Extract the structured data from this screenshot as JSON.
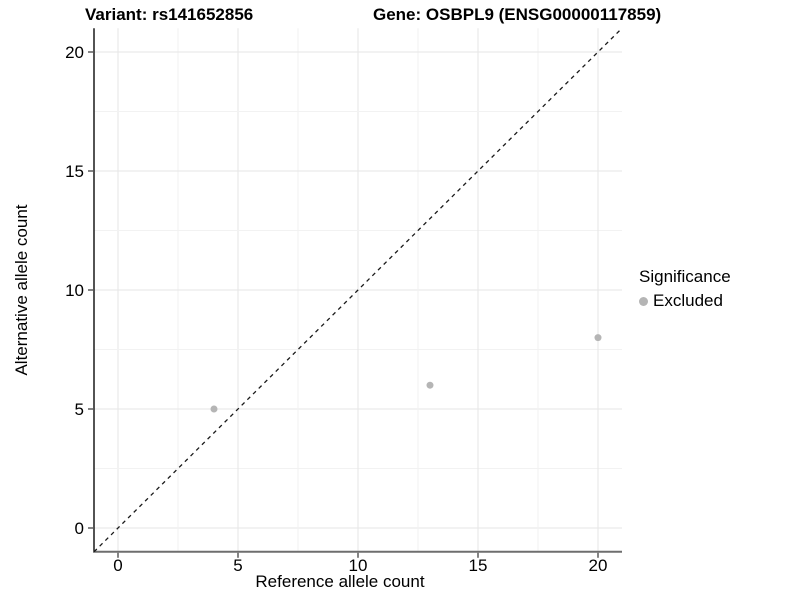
{
  "chart_data": {
    "type": "scatter",
    "title_left": "Variant: rs141652856",
    "title_right": "Gene: OSBPL9 (ENSG00000117859)",
    "xlabel": "Reference allele count",
    "ylabel": "Alternative allele count",
    "xlim": [
      -1,
      21
    ],
    "ylim": [
      -1,
      21
    ],
    "x_ticks": [
      0,
      5,
      10,
      15,
      20
    ],
    "y_ticks": [
      0,
      5,
      10,
      15,
      20
    ],
    "minor_grid_step": 2.5,
    "grid": true,
    "points": [
      {
        "x": 4,
        "y": 5
      },
      {
        "x": 13,
        "y": 6
      },
      {
        "x": 20,
        "y": 8
      }
    ],
    "point_color": "#b5b5b5",
    "identity_line": {
      "style": "dashed",
      "from": [
        -1,
        -1
      ],
      "to": [
        21,
        21
      ],
      "color": "#1a1a1a"
    },
    "legend": {
      "title": "Significance",
      "position": "right",
      "entries": [
        {
          "label": "Excluded",
          "color": "#b5b5b5"
        }
      ]
    },
    "colors": {
      "background": "#ffffff",
      "grid_major": "#e5e5e5",
      "grid_minor": "#f2f2f2",
      "axis_left": "#1a1a1a",
      "axis_bottom": "#6e6e6e",
      "tick": "#333333",
      "text": "#000000"
    }
  }
}
